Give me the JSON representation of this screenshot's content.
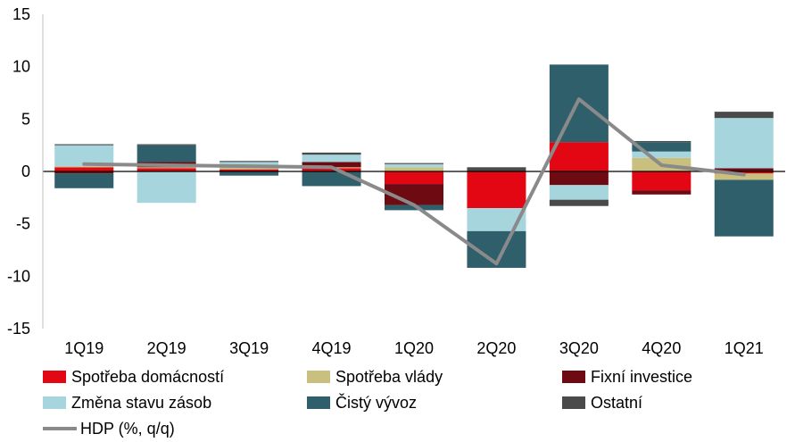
{
  "chart_data": {
    "type": "bar",
    "stacked": true,
    "categories": [
      "1Q19",
      "2Q19",
      "3Q19",
      "4Q19",
      "1Q20",
      "2Q20",
      "3Q20",
      "4Q20",
      "1Q21"
    ],
    "ylim": [
      -15,
      15
    ],
    "yticks": [
      "15",
      "10",
      "5",
      "0",
      "-5",
      "-10",
      "-15"
    ],
    "ytick_values": [
      15,
      10,
      5,
      0,
      -5,
      -10,
      -15
    ],
    "grid": false,
    "legend_position": "bottom",
    "series": [
      {
        "name": "Spotřeba domácností",
        "color": "#e30613",
        "values": [
          0.4,
          0.3,
          0.2,
          0.3,
          -1.2,
          -3.5,
          2.8,
          -1.8,
          -0.2
        ]
      },
      {
        "name": "Spotřeba vlády",
        "color": "#c9c080",
        "values": [
          0.1,
          0.1,
          0.2,
          0.1,
          0.4,
          0.0,
          0.0,
          1.3,
          -0.6
        ]
      },
      {
        "name": "Fixní investice",
        "color": "#6d0a12",
        "values": [
          -0.2,
          0.5,
          0.1,
          0.5,
          -2.0,
          0.0,
          -1.3,
          -0.4,
          0.3
        ]
      },
      {
        "name": "Změna stavu zásob",
        "color": "#a6d5dd",
        "values": [
          2.0,
          -3.0,
          0.4,
          0.7,
          0.3,
          -2.2,
          -1.4,
          0.6,
          4.8
        ]
      },
      {
        "name": "Čistý vývoz",
        "color": "#2f5f6b",
        "values": [
          -1.4,
          1.6,
          -0.4,
          -1.4,
          -0.5,
          -3.5,
          7.4,
          0.9,
          -5.4
        ]
      },
      {
        "name": "Ostatní",
        "color": "#4a4a4a",
        "values": [
          0.1,
          0.1,
          0.1,
          0.2,
          0.1,
          0.4,
          -0.6,
          0.1,
          0.6
        ]
      }
    ],
    "line": {
      "name": "HDP (%, q/q)",
      "color": "#8a8a8a",
      "values": [
        0.7,
        0.6,
        0.5,
        0.4,
        -3.2,
        -8.8,
        6.9,
        0.6,
        -0.3
      ]
    }
  }
}
